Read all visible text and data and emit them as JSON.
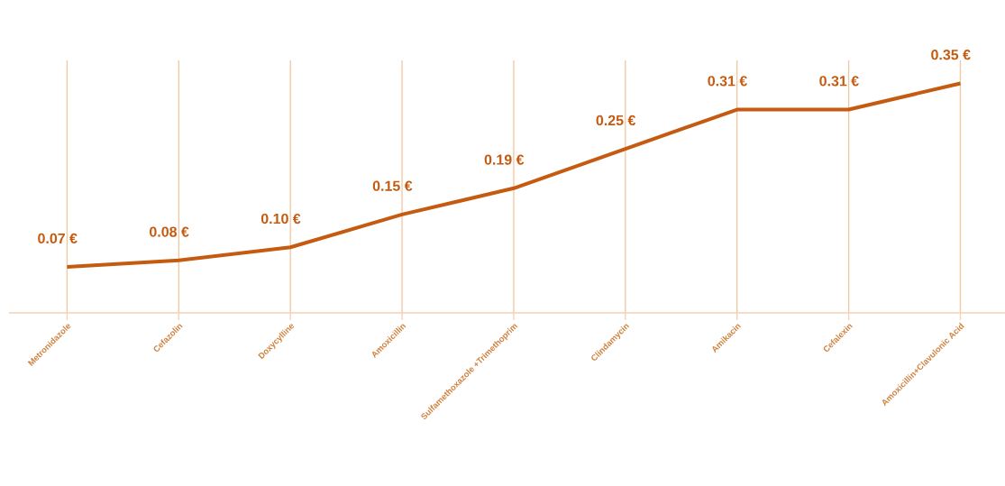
{
  "chart_data": {
    "type": "line",
    "categories": [
      "Metronidazole",
      "Cefazolin",
      "Doxycylline",
      "Amoxicillin",
      "Sulfamethoxazole +Trimethoprim",
      "Clindamycin",
      "Amikacin",
      "Cefalexin",
      "Amoxicillin+Clavulonic Acid"
    ],
    "values": [
      0.07,
      0.08,
      0.1,
      0.15,
      0.19,
      0.25,
      0.31,
      0.31,
      0.35
    ],
    "value_labels": [
      "0.07 €",
      "0.08 €",
      "0.10 €",
      "0.15 €",
      "0.19 €",
      "0.25 €",
      "0.31 €",
      "0.31 €",
      "0.35 €"
    ],
    "color": "#c55a11",
    "grid": "x",
    "tick_labels": "x",
    "marker": "none",
    "line_style": "solid"
  }
}
